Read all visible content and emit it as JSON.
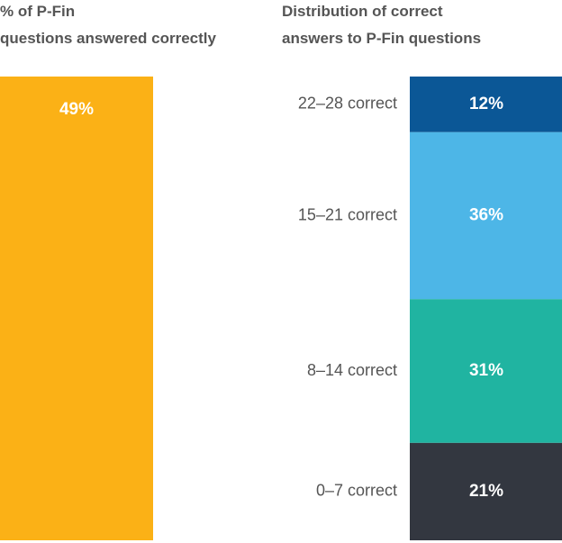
{
  "chart_data": [
    {
      "type": "bar",
      "title": "% of P-Fin questions answered correctly",
      "values": [
        49
      ],
      "value_labels": [
        "49%"
      ],
      "color": "#fbb116"
    },
    {
      "type": "stacked",
      "title": "Distribution of correct answers to P-Fin questions",
      "categories": [
        "22–28 correct",
        "15–21 correct",
        "8–14 correct",
        "0–7 correct"
      ],
      "values": [
        12,
        36,
        31,
        21
      ],
      "value_labels": [
        "12%",
        "36%",
        "31%",
        "21%"
      ],
      "colors": [
        "#0b5796",
        "#4db6e7",
        "#20b4a1",
        "#333740"
      ]
    }
  ]
}
